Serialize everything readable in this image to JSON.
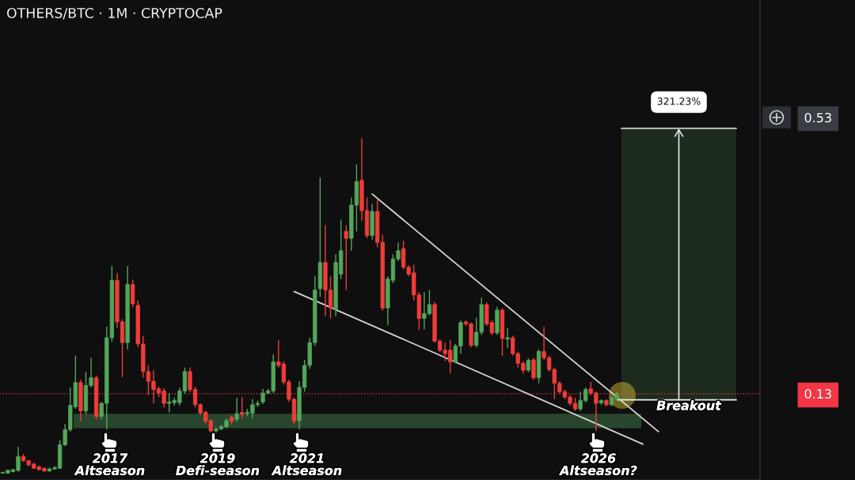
{
  "chart_data": {
    "type": "candlestick",
    "title": "OTHERS/BTC · 1M · CRYPTOCAP",
    "categories": [
      null,
      null,
      null,
      null,
      null,
      null,
      null,
      null,
      null,
      null,
      null,
      null,
      null,
      null,
      null,
      null,
      null,
      null,
      null,
      null,
      null,
      null,
      null,
      null,
      null,
      null,
      null,
      null,
      null,
      null,
      null,
      null,
      null,
      null,
      null,
      null,
      null,
      null,
      null,
      null,
      null,
      null,
      null,
      null,
      null,
      null,
      null,
      null,
      null,
      null,
      null,
      null,
      null,
      null,
      null,
      null,
      null,
      null,
      null,
      null,
      null,
      null,
      null,
      null,
      null,
      null,
      null,
      null,
      null,
      null,
      null,
      null,
      null,
      null,
      null,
      null,
      null,
      null,
      null,
      null,
      null,
      null,
      null,
      null,
      null,
      null,
      null,
      null,
      null,
      null,
      null,
      null,
      null,
      null,
      null,
      null,
      null,
      null,
      null,
      null,
      null,
      null,
      null,
      null,
      null,
      null,
      null,
      null,
      null,
      null,
      null,
      null,
      null,
      null,
      null,
      null,
      null,
      null,
      null,
      null,
      null,
      null,
      null,
      null,
      null,
      null,
      null,
      null,
      null,
      null,
      null,
      null,
      null,
      null,
      null,
      null,
      null,
      null,
      null,
      null,
      null,
      null,
      null,
      null,
      null,
      null
    ],
    "ohlc": [
      [
        0.015,
        0.017,
        0.014,
        0.016
      ],
      [
        0.015,
        0.02,
        0.014,
        0.019
      ],
      [
        0.017,
        0.021,
        0.016,
        0.02
      ],
      [
        0.019,
        0.053,
        0.017,
        0.039
      ],
      [
        0.039,
        0.043,
        0.031,
        0.033
      ],
      [
        0.033,
        0.034,
        0.025,
        0.027
      ],
      [
        0.028,
        0.03,
        0.021,
        0.022
      ],
      [
        0.024,
        0.026,
        0.019,
        0.02
      ],
      [
        0.022,
        0.023,
        0.017,
        0.018
      ],
      [
        0.018,
        0.023,
        0.017,
        0.021
      ],
      [
        0.021,
        0.025,
        0.02,
        0.023
      ],
      [
        0.022,
        0.063,
        0.021,
        0.056
      ],
      [
        0.056,
        0.086,
        0.054,
        0.078
      ],
      [
        0.078,
        0.139,
        0.075,
        0.113
      ],
      [
        0.111,
        0.185,
        0.108,
        0.146
      ],
      [
        0.146,
        0.15,
        0.09,
        0.105
      ],
      [
        0.105,
        0.162,
        0.1,
        0.142
      ],
      [
        0.142,
        0.182,
        0.139,
        0.153
      ],
      [
        0.153,
        0.156,
        0.093,
        0.097
      ],
      [
        0.097,
        0.118,
        0.093,
        0.116
      ],
      [
        0.116,
        0.227,
        0.078,
        0.211
      ],
      [
        0.211,
        0.315,
        0.205,
        0.294
      ],
      [
        0.294,
        0.305,
        0.225,
        0.234
      ],
      [
        0.234,
        0.238,
        0.154,
        0.204
      ],
      [
        0.204,
        0.315,
        0.194,
        0.288
      ],
      [
        0.288,
        0.295,
        0.255,
        0.26
      ],
      [
        0.258,
        0.265,
        0.198,
        0.202
      ],
      [
        0.202,
        0.214,
        0.153,
        0.162
      ],
      [
        0.162,
        0.171,
        0.128,
        0.148
      ],
      [
        0.148,
        0.164,
        0.116,
        0.136
      ],
      [
        0.137,
        0.14,
        0.125,
        0.131
      ],
      [
        0.134,
        0.138,
        0.11,
        0.116
      ],
      [
        0.116,
        0.131,
        0.103,
        0.118
      ],
      [
        0.117,
        0.124,
        0.113,
        0.12
      ],
      [
        0.117,
        0.139,
        0.113,
        0.134
      ],
      [
        0.134,
        0.168,
        0.13,
        0.162
      ],
      [
        0.162,
        0.168,
        0.132,
        0.136
      ],
      [
        0.136,
        0.14,
        0.11,
        0.114
      ],
      [
        0.114,
        0.116,
        0.099,
        0.102
      ],
      [
        0.103,
        0.105,
        0.087,
        0.09
      ],
      [
        0.091,
        0.093,
        0.074,
        0.076
      ],
      [
        0.076,
        0.081,
        0.074,
        0.079
      ],
      [
        0.079,
        0.085,
        0.077,
        0.082
      ],
      [
        0.082,
        0.094,
        0.08,
        0.091
      ],
      [
        0.096,
        0.099,
        0.085,
        0.09
      ],
      [
        0.093,
        0.124,
        0.089,
        0.101
      ],
      [
        0.103,
        0.125,
        0.094,
        0.1
      ],
      [
        0.101,
        0.108,
        0.097,
        0.103
      ],
      [
        0.102,
        0.122,
        0.094,
        0.114
      ],
      [
        0.114,
        0.12,
        0.111,
        0.116
      ],
      [
        0.118,
        0.137,
        0.115,
        0.131
      ],
      [
        0.131,
        0.137,
        0.129,
        0.134
      ],
      [
        0.134,
        0.187,
        0.131,
        0.176
      ],
      [
        0.176,
        0.208,
        0.168,
        0.171
      ],
      [
        0.173,
        0.177,
        0.143,
        0.147
      ],
      [
        0.147,
        0.15,
        0.118,
        0.122
      ],
      [
        0.122,
        0.124,
        0.086,
        0.09
      ],
      [
        0.091,
        0.148,
        0.078,
        0.139
      ],
      [
        0.139,
        0.179,
        0.133,
        0.171
      ],
      [
        0.171,
        0.211,
        0.166,
        0.204
      ],
      [
        0.204,
        0.3,
        0.199,
        0.28
      ],
      [
        0.282,
        0.443,
        0.27,
        0.32
      ],
      [
        0.32,
        0.374,
        0.242,
        0.28
      ],
      [
        0.28,
        0.3,
        0.239,
        0.254
      ],
      [
        0.252,
        0.332,
        0.242,
        0.32
      ],
      [
        0.303,
        0.382,
        0.296,
        0.337
      ],
      [
        0.365,
        0.374,
        0.28,
        0.355
      ],
      [
        0.355,
        0.414,
        0.337,
        0.403
      ],
      [
        0.403,
        0.462,
        0.365,
        0.437
      ],
      [
        0.439,
        0.5,
        0.38,
        0.395
      ],
      [
        0.395,
        0.414,
        0.355,
        0.359
      ],
      [
        0.359,
        0.405,
        0.353,
        0.394
      ],
      [
        0.394,
        0.411,
        0.342,
        0.349
      ],
      [
        0.349,
        0.36,
        0.25,
        0.254
      ],
      [
        0.254,
        0.3,
        0.229,
        0.296
      ],
      [
        0.294,
        0.332,
        0.29,
        0.325
      ],
      [
        0.325,
        0.349,
        0.322,
        0.337
      ],
      [
        0.34,
        0.351,
        0.31,
        0.313
      ],
      [
        0.313,
        0.316,
        0.3,
        0.303
      ],
      [
        0.305,
        0.317,
        0.265,
        0.273
      ],
      [
        0.273,
        0.277,
        0.222,
        0.239
      ],
      [
        0.239,
        0.277,
        0.223,
        0.246
      ],
      [
        0.246,
        0.28,
        0.243,
        0.259
      ],
      [
        0.259,
        0.263,
        0.204,
        0.206
      ],
      [
        0.206,
        0.209,
        0.19,
        0.193
      ],
      [
        0.193,
        0.204,
        0.177,
        0.188
      ],
      [
        0.193,
        0.208,
        0.159,
        0.176
      ],
      [
        0.176,
        0.202,
        0.174,
        0.199
      ],
      [
        0.199,
        0.236,
        0.188,
        0.233
      ],
      [
        0.234,
        0.236,
        0.228,
        0.231
      ],
      [
        0.231,
        0.233,
        0.197,
        0.2
      ],
      [
        0.2,
        0.24,
        0.197,
        0.219
      ],
      [
        0.219,
        0.269,
        0.215,
        0.259
      ],
      [
        0.259,
        0.262,
        0.228,
        0.231
      ],
      [
        0.233,
        0.236,
        0.215,
        0.218
      ],
      [
        0.218,
        0.256,
        0.215,
        0.251
      ],
      [
        0.251,
        0.254,
        0.185,
        0.21
      ],
      [
        0.209,
        0.225,
        0.196,
        0.211
      ],
      [
        0.211,
        0.214,
        0.185,
        0.188
      ],
      [
        0.188,
        0.191,
        0.168,
        0.174
      ],
      [
        0.174,
        0.177,
        0.159,
        0.164
      ],
      [
        0.164,
        0.181,
        0.161,
        0.178
      ],
      [
        0.179,
        0.182,
        0.15,
        0.153
      ],
      [
        0.153,
        0.194,
        0.145,
        0.191
      ],
      [
        0.191,
        0.227,
        0.179,
        0.182
      ],
      [
        0.182,
        0.185,
        0.162,
        0.165
      ],
      [
        0.165,
        0.168,
        0.122,
        0.145
      ],
      [
        0.145,
        0.148,
        0.13,
        0.133
      ],
      [
        0.133,
        0.136,
        0.122,
        0.125
      ],
      [
        0.125,
        0.128,
        0.113,
        0.116
      ],
      [
        0.116,
        0.124,
        0.105,
        0.108
      ],
      [
        0.108,
        0.133,
        0.105,
        0.12
      ],
      [
        0.12,
        0.139,
        0.117,
        0.136
      ],
      [
        0.137,
        0.147,
        0.128,
        0.131
      ],
      [
        0.131,
        0.133,
        0.076,
        0.116
      ],
      [
        0.117,
        0.122,
        0.114,
        0.12
      ],
      [
        0.12,
        0.122,
        0.112,
        0.114
      ],
      [
        0.114,
        0.126,
        0.112,
        0.124
      ],
      [
        0.122,
        0.133,
        0.12,
        0.13
      ],
      null,
      null,
      null,
      null,
      null,
      null,
      null,
      null,
      null,
      null,
      null,
      null,
      null,
      null,
      null,
      null,
      null,
      null,
      null,
      null,
      null,
      null,
      null,
      null,
      null,
      null,
      null
    ],
    "colors": [
      "#53a65a",
      "#53a65a",
      "#53a65a",
      "#53a65a",
      "#ef3d3a",
      "#ef3d3a",
      "#ef3d3a",
      "#ef3d3a",
      "#ef3d3a",
      "#53a65a",
      "#53a65a",
      "#53a65a",
      "#53a65a",
      "#53a65a",
      "#53a65a",
      "#ef3d3a",
      "#53a65a",
      "#53a65a",
      "#ef3d3a",
      "#53a65a",
      "#53a65a",
      "#53a65a",
      "#ef3d3a",
      "#ef3d3a",
      "#53a65a",
      "#ef3d3a",
      "#ef3d3a",
      "#ef3d3a",
      "#ef3d3a",
      "#ef3d3a",
      "#ef3d3a",
      "#ef3d3a",
      "#53a65a",
      "#53a65a",
      "#53a65a",
      "#53a65a",
      "#ef3d3a",
      "#ef3d3a",
      "#ef3d3a",
      "#ef3d3a",
      "#ef3d3a",
      "#53a65a",
      "#53a65a",
      "#53a65a",
      "#ef3d3a",
      "#53a65a",
      "#ef3d3a",
      "#53a65a",
      "#53a65a",
      "#53a65a",
      "#53a65a",
      "#53a65a",
      "#53a65a",
      "#ef3d3a",
      "#ef3d3a",
      "#ef3d3a",
      "#ef3d3a",
      "#53a65a",
      "#53a65a",
      "#53a65a",
      "#53a65a",
      "#53a65a",
      "#ef3d3a",
      "#ef3d3a",
      "#53a65a",
      "#53a65a",
      "#ef3d3a",
      "#53a65a",
      "#53a65a",
      "#ef3d3a",
      "#ef3d3a",
      "#53a65a",
      "#ef3d3a",
      "#ef3d3a",
      "#53a65a",
      "#53a65a",
      "#53a65a",
      "#ef3d3a",
      "#ef3d3a",
      "#ef3d3a",
      "#ef3d3a",
      "#53a65a",
      "#53a65a",
      "#ef3d3a",
      "#ef3d3a",
      "#ef3d3a",
      "#ef3d3a",
      "#53a65a",
      "#53a65a",
      "#ef3d3a",
      "#ef3d3a",
      "#53a65a",
      "#53a65a",
      "#ef3d3a",
      "#ef3d3a",
      "#53a65a",
      "#ef3d3a",
      "#53a65a",
      "#ef3d3a",
      "#ef3d3a",
      "#ef3d3a",
      "#53a65a",
      "#ef3d3a",
      "#53a65a",
      "#ef3d3a",
      "#ef3d3a",
      "#ef3d3a",
      "#ef3d3a",
      "#ef3d3a",
      "#ef3d3a",
      "#ef3d3a",
      "#53a65a",
      "#53a65a",
      "#ef3d3a",
      "#ef3d3a",
      "#53a65a",
      "#ef3d3a",
      "#53a65a",
      "#53a65a",
      null,
      null,
      null,
      null,
      null,
      null,
      null,
      null,
      null,
      null,
      null,
      null,
      null,
      null,
      null,
      null,
      null,
      null,
      null,
      null,
      null,
      null,
      null,
      null,
      null,
      null,
      null
    ],
    "series": [
      {
        "type": "line",
        "color": "#d6d6d6",
        "line_style": "solid",
        "values": [
          null,
          null,
          null,
          null,
          null,
          null,
          null,
          null,
          null,
          null,
          null,
          null,
          null,
          null,
          null,
          null,
          null,
          null,
          null,
          null,
          null,
          null,
          null,
          null,
          null,
          null,
          null,
          null,
          null,
          null,
          null,
          null,
          null,
          null,
          null,
          null,
          null,
          null,
          null,
          null,
          null,
          null,
          null,
          null,
          null,
          null,
          null,
          null,
          null,
          null,
          null,
          null,
          null,
          null,
          null,
          null,
          0.278,
          null,
          null,
          null,
          null,
          null,
          null,
          null,
          null,
          null,
          null,
          null,
          null,
          null,
          null,
          null,
          null,
          null,
          null,
          null,
          null,
          null,
          null,
          null,
          null,
          null,
          null,
          null,
          null,
          null,
          null,
          null,
          null,
          null,
          null,
          null,
          null,
          null,
          null,
          null,
          null,
          null,
          null,
          null,
          null,
          null,
          null,
          null,
          null,
          null,
          null,
          null,
          null,
          null,
          null,
          null,
          null,
          null,
          null,
          null,
          null,
          null,
          null,
          null,
          null,
          null,
          null,
          0.057,
          null,
          null,
          null,
          null,
          null,
          null,
          null,
          null,
          null,
          null,
          null,
          null,
          null,
          null,
          null,
          null,
          null,
          null,
          null,
          null,
          null,
          null
        ]
      },
      {
        "type": "line",
        "color": "#d6d6d6",
        "line_style": "solid",
        "values": [
          null,
          null,
          null,
          null,
          null,
          null,
          null,
          null,
          null,
          null,
          null,
          null,
          null,
          null,
          null,
          null,
          null,
          null,
          null,
          null,
          null,
          null,
          null,
          null,
          null,
          null,
          null,
          null,
          null,
          null,
          null,
          null,
          null,
          null,
          null,
          null,
          null,
          null,
          null,
          null,
          null,
          null,
          null,
          null,
          null,
          null,
          null,
          null,
          null,
          null,
          null,
          null,
          null,
          null,
          null,
          null,
          null,
          null,
          null,
          null,
          null,
          null,
          null,
          null,
          null,
          null,
          null,
          null,
          null,
          null,
          null,
          0.419,
          null,
          null,
          null,
          null,
          null,
          null,
          null,
          null,
          null,
          null,
          null,
          null,
          null,
          null,
          null,
          null,
          null,
          null,
          null,
          null,
          null,
          null,
          null,
          null,
          null,
          null,
          null,
          null,
          null,
          null,
          null,
          null,
          null,
          null,
          null,
          null,
          null,
          null,
          null,
          null,
          null,
          null,
          null,
          null,
          null,
          null,
          null,
          null,
          null,
          null,
          null,
          null,
          null,
          null,
          0.075,
          null,
          null,
          null,
          null,
          null,
          null,
          null,
          null,
          null,
          null,
          null,
          null,
          null,
          null,
          null,
          null,
          null,
          null,
          null
        ]
      }
    ],
    "ylim": [
      0.005,
      0.7
    ],
    "yticks": [
      0.13,
      0.53
    ],
    "tick_labels": "y",
    "ref_lines": [
      {
        "axis": "y",
        "value": 0.13,
        "color": "#f23645",
        "line_style": "dotted"
      },
      {
        "axis": "y",
        "value": 0.514,
        "color": "#cfcfcf",
        "line_style": "solid"
      },
      {
        "axis": "y",
        "value": 0.121,
        "color": "#f0f0f0",
        "line_style": "solid"
      }
    ],
    "bands": [
      {
        "axis": "y",
        "from": 0.08,
        "to": 0.101,
        "color": "#28462d"
      },
      {
        "axis": "y",
        "from": 0.121,
        "to": 0.514,
        "color": "#1c2b1e",
        "label": "321.23%"
      }
    ],
    "annotations": [
      "Breakout",
      "2017\nAltseason",
      "2019\nDefi-season",
      "2021\nAltseason",
      "2026\nAltseason?"
    ]
  }
}
